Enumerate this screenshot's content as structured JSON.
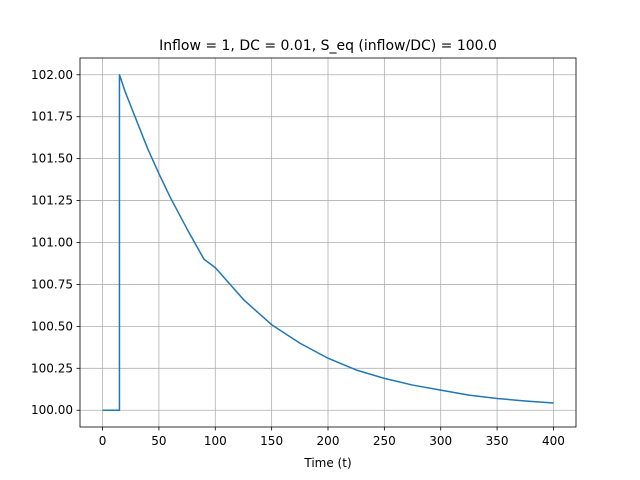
{
  "chart_data": {
    "type": "line",
    "title": "Inflow = 1, DC = 0.01, S_eq (inflow/DC) = 100.0",
    "xlabel": "Time (t)",
    "ylabel": "",
    "xlim": [
      -20,
      420
    ],
    "ylim": [
      99.9,
      102.1
    ],
    "xticks": [
      0,
      50,
      100,
      150,
      200,
      250,
      300,
      350,
      400
    ],
    "xtick_labels": [
      "0",
      "50",
      "100",
      "150",
      "200",
      "250",
      "300",
      "350",
      "400"
    ],
    "yticks": [
      100.0,
      100.25,
      100.5,
      100.75,
      101.0,
      101.25,
      101.5,
      101.75,
      102.0
    ],
    "ytick_labels": [
      "100.00",
      "100.25",
      "100.50",
      "100.75",
      "101.00",
      "101.25",
      "101.50",
      "101.75",
      "102.00"
    ],
    "grid": true,
    "series": [
      {
        "color": "#1f77b4",
        "x": [
          0,
          5,
          10,
          15,
          15,
          20,
          30,
          40,
          50,
          60,
          75,
          90,
          100,
          125,
          150,
          175,
          200,
          225,
          250,
          275,
          300,
          325,
          350,
          375,
          400
        ],
        "y": [
          100.0,
          100.0,
          100.0,
          100.0,
          102.0,
          101.9,
          101.73,
          101.56,
          101.41,
          101.27,
          101.08,
          100.9,
          100.85,
          100.66,
          100.51,
          100.4,
          100.31,
          100.24,
          100.19,
          100.15,
          100.12,
          100.09,
          100.07,
          100.055,
          100.043
        ]
      }
    ]
  }
}
